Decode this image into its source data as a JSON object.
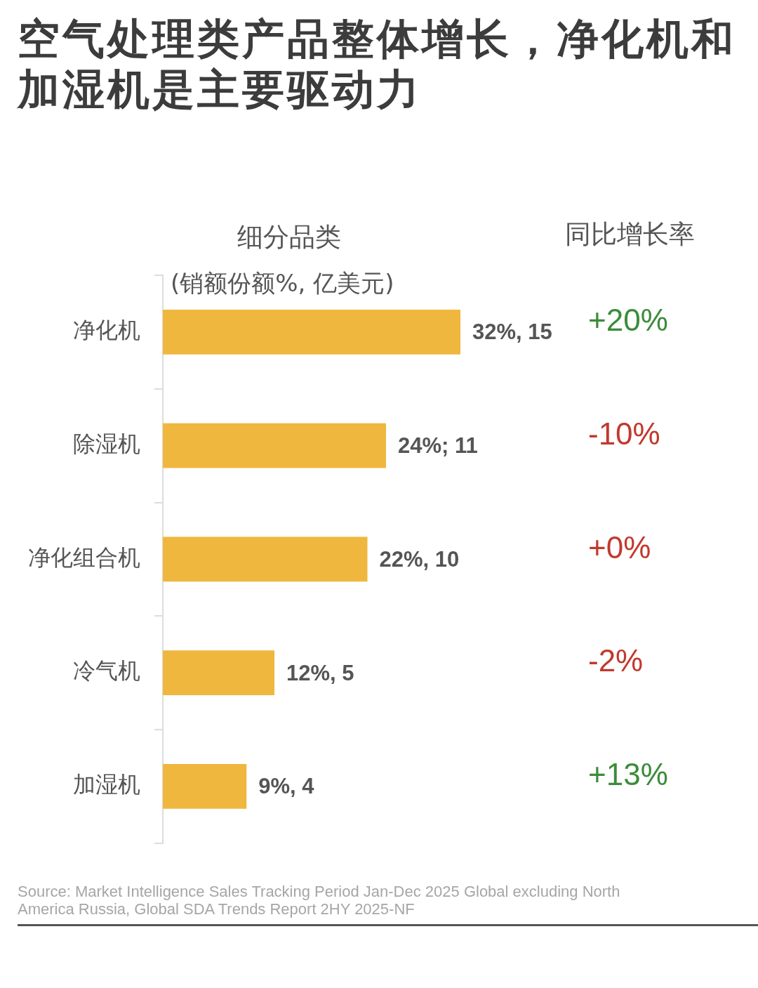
{
  "chart_data": {
    "type": "bar",
    "orientation": "horizontal",
    "title": "空气处理类产品整体增长，净化机和加湿机是主要驱动力",
    "ylabel": "细分品类",
    "xlabel": "(销额份额%, 亿美元)",
    "categories": [
      "净化机",
      "除湿机",
      "净化组合机",
      "冷气机",
      "加湿机"
    ],
    "values": [
      32,
      24,
      22,
      12,
      9
    ],
    "color": "#f0b73e",
    "value_labels": [
      "32%, 15",
      "24%; 11",
      "22%, 10",
      "12%, 5",
      "9%, 4"
    ],
    "annotations": [
      "同比增长率",
      "+20%",
      "-10%",
      "+0%",
      "-2%",
      "+13%",
      "Source: Market Intelligence Sales Tracking Period Jan-Dec 2025  Global excluding North America Russia, Global SDA Trends Report 2HY 2025-NF"
    ]
  }
}
